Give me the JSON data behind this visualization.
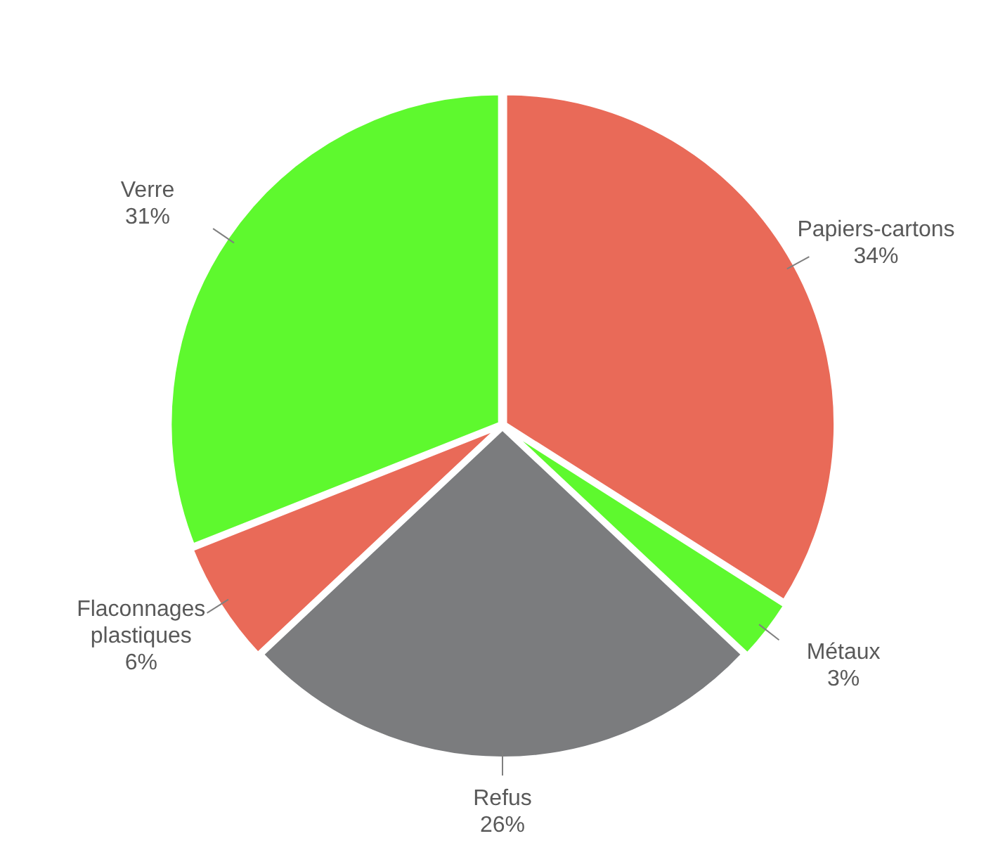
{
  "chart_data": {
    "type": "pie",
    "categories": [
      "Papiers-cartons",
      "Métaux",
      "Refus",
      "Flaconnages plastiques",
      "Verre"
    ],
    "values": [
      34,
      3,
      26,
      6,
      31
    ],
    "value_labels": [
      "34%",
      "3%",
      "26%",
      "6%",
      "31%"
    ],
    "colors": [
      "#e96a58",
      "#5ef92e",
      "#7b7c7e",
      "#e96a58",
      "#5ef92e"
    ],
    "legend": false
  }
}
